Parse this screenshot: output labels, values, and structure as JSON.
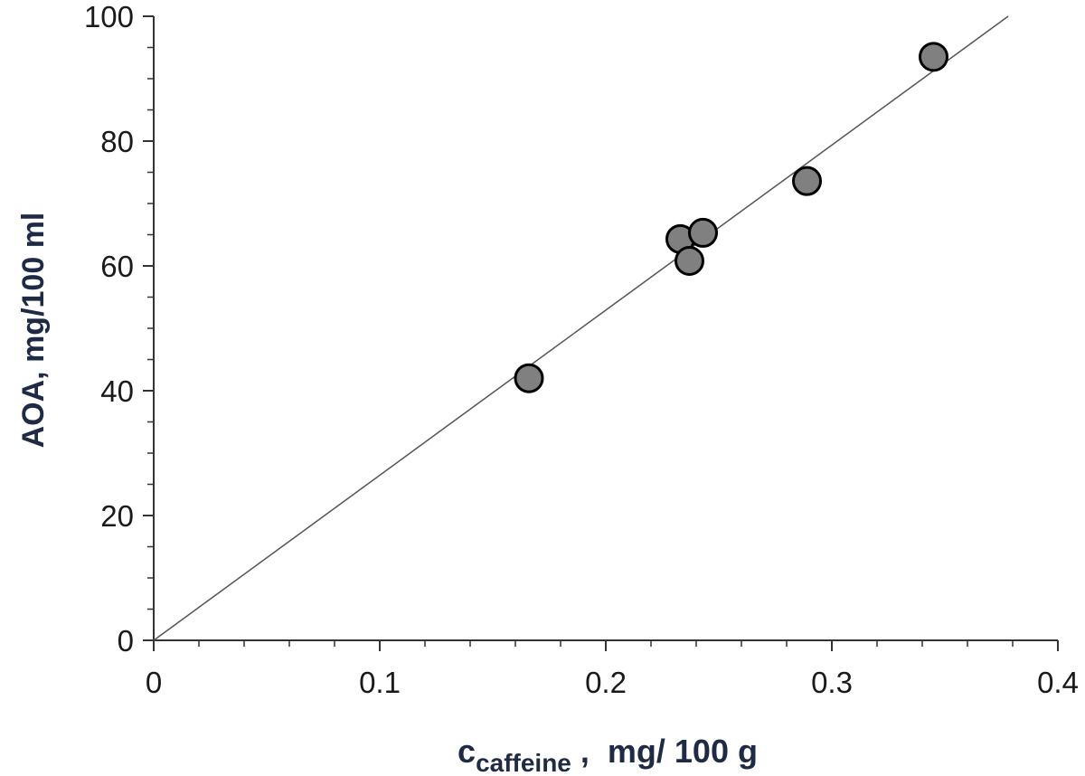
{
  "chart_data": {
    "type": "scatter",
    "xlabel": {
      "symbol": "c",
      "subscript": "caffeine",
      "rest": " ,  mg/ 100 g"
    },
    "ylabel": "AOA, mg/100 ml",
    "xlim": [
      0,
      0.4
    ],
    "ylim": [
      0,
      100
    ],
    "x_ticks": [
      "0",
      "0.1",
      "0.2",
      "0.3",
      "0.4"
    ],
    "y_ticks": [
      "0",
      "20",
      "40",
      "60",
      "80",
      "100"
    ],
    "x_minor_step": 0.02,
    "y_minor_step": 5,
    "grid": false,
    "legend": "none",
    "points": [
      {
        "x": 0.166,
        "y": 42.0
      },
      {
        "x": 0.233,
        "y": 64.3
      },
      {
        "x": 0.237,
        "y": 60.8
      },
      {
        "x": 0.243,
        "y": 65.3
      },
      {
        "x": 0.289,
        "y": 73.6
      },
      {
        "x": 0.345,
        "y": 93.5
      }
    ],
    "fit_line": {
      "x": [
        0,
        0.378
      ],
      "y": [
        0,
        100
      ]
    },
    "colors": {
      "marker_fill": "#808080",
      "marker_stroke": "#000000",
      "line": "#555555",
      "axis": "#333333",
      "axis_title": "#1f2a44"
    }
  }
}
